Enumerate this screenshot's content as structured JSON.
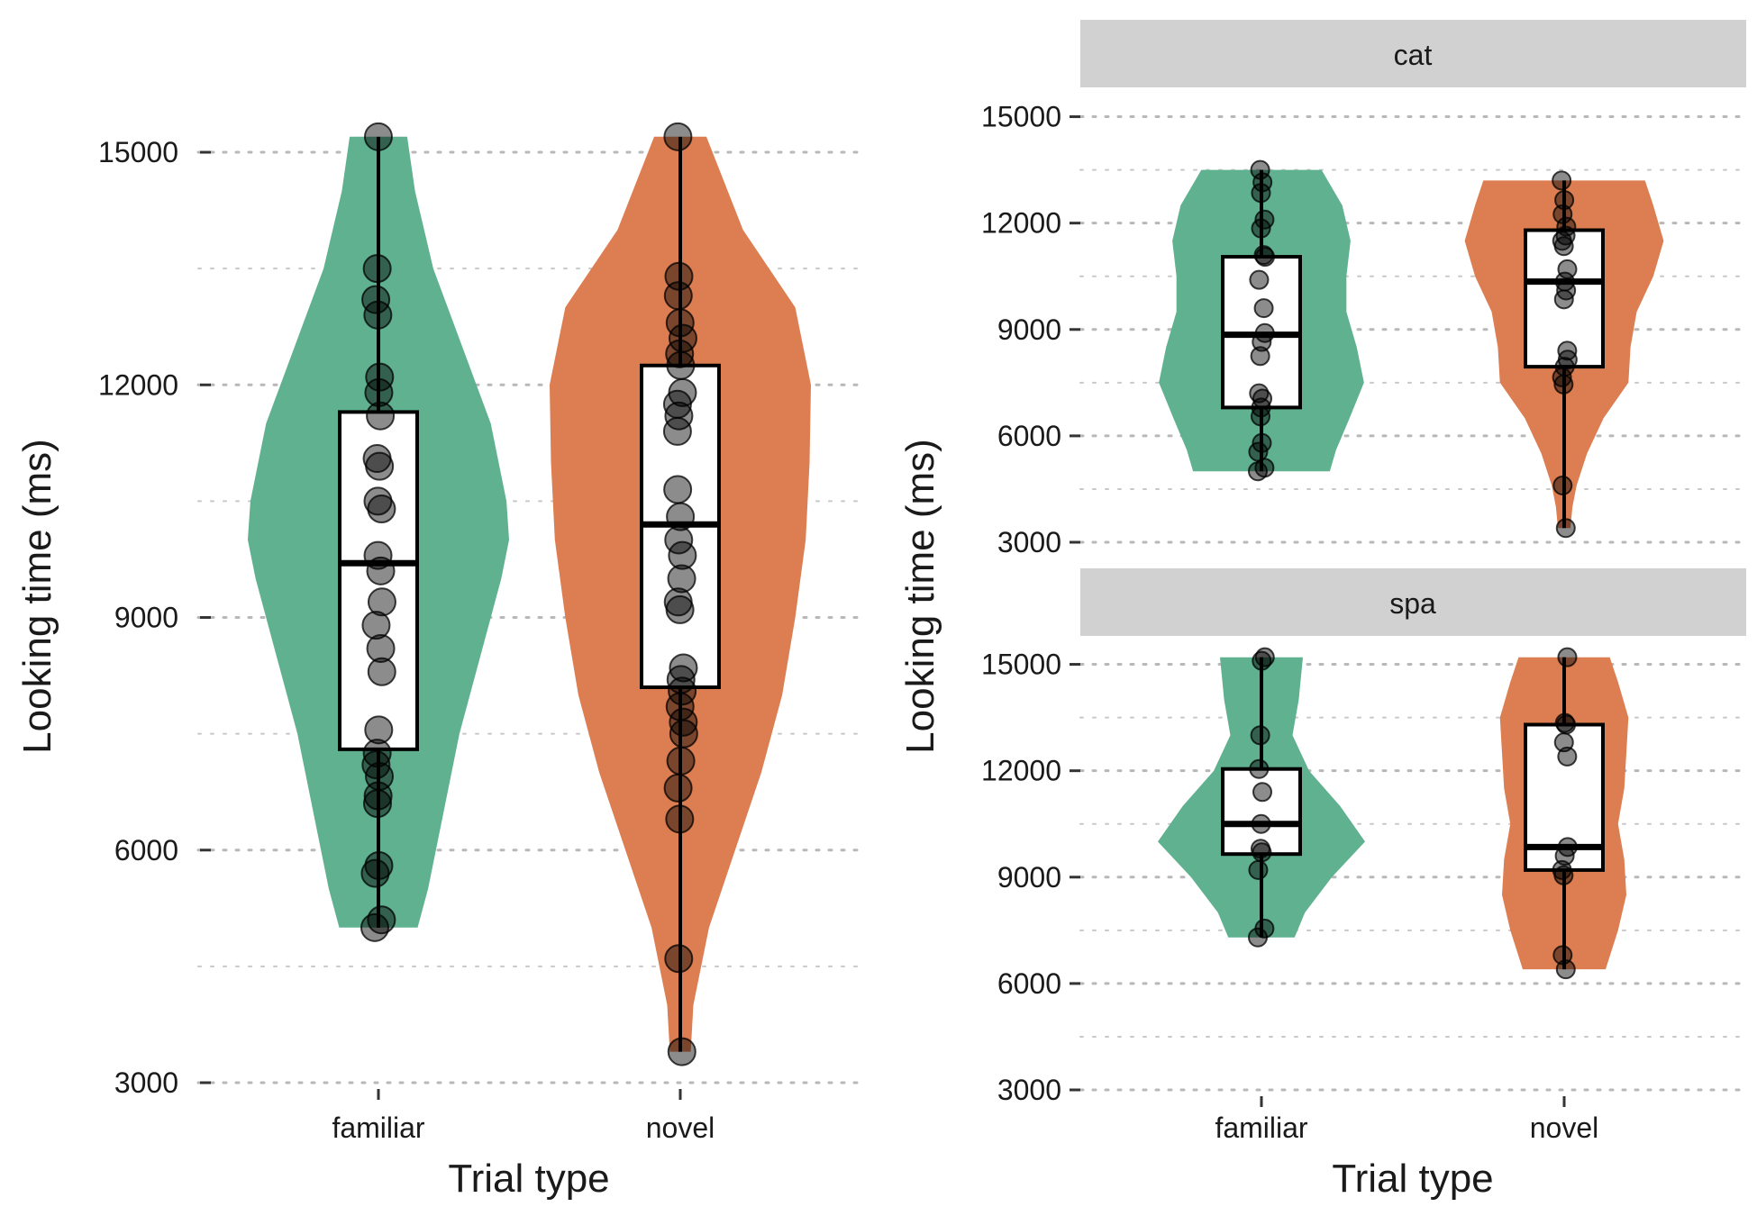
{
  "colors": {
    "familiar": "#5fb190",
    "novel": "#dc7e51",
    "strip": "#d1d1d1"
  },
  "chart_data": [
    {
      "type": "violin",
      "panel": "overall",
      "xlabel": "Trial type",
      "ylabel": "Looking time (ms)",
      "ylim": [
        3000,
        15500
      ],
      "yticks": [
        3000,
        6000,
        9000,
        12000,
        15000
      ],
      "grid": "dotted horizontal",
      "categories": [
        "familiar",
        "novel"
      ],
      "groups": [
        {
          "category": "familiar",
          "box": {
            "q1": 7300,
            "median": 9700,
            "q3": 11650,
            "whisker_low": 5000,
            "whisker_high": 15200
          },
          "density": [
            [
              5000,
              0.3
            ],
            [
              5500,
              0.38
            ],
            [
              6500,
              0.5
            ],
            [
              7500,
              0.62
            ],
            [
              8500,
              0.78
            ],
            [
              9500,
              0.94
            ],
            [
              10000,
              1.0
            ],
            [
              10500,
              0.98
            ],
            [
              11500,
              0.86
            ],
            [
              12500,
              0.64
            ],
            [
              13500,
              0.42
            ],
            [
              14500,
              0.28
            ],
            [
              15200,
              0.22
            ]
          ],
          "points": [
            5000,
            5100,
            5700,
            5800,
            6600,
            6700,
            6950,
            7100,
            7250,
            7550,
            8300,
            8600,
            8900,
            9200,
            9600,
            9800,
            10400,
            10500,
            10950,
            11050,
            11600,
            11900,
            12100,
            12900,
            13100,
            13500,
            15200
          ]
        },
        {
          "category": "novel",
          "box": {
            "q1": 8100,
            "median": 10200,
            "q3": 12250,
            "whisker_low": 3400,
            "whisker_high": 15200
          },
          "density": [
            [
              3400,
              0.08
            ],
            [
              4000,
              0.1
            ],
            [
              5000,
              0.22
            ],
            [
              6000,
              0.42
            ],
            [
              7000,
              0.62
            ],
            [
              8000,
              0.78
            ],
            [
              9000,
              0.88
            ],
            [
              10000,
              0.96
            ],
            [
              11000,
              0.99
            ],
            [
              12000,
              1.0
            ],
            [
              13000,
              0.88
            ],
            [
              14000,
              0.48
            ],
            [
              15200,
              0.2
            ]
          ],
          "points": [
            3400,
            4600,
            6400,
            6800,
            7150,
            7500,
            7650,
            7850,
            8050,
            8200,
            8350,
            9100,
            9200,
            9500,
            9800,
            10000,
            10300,
            10650,
            11400,
            11600,
            11750,
            11900,
            12250,
            12400,
            12600,
            12800,
            13150,
            13400,
            15200
          ]
        }
      ]
    },
    {
      "type": "violin",
      "panel": "cat",
      "strip_label": "cat",
      "xlabel": "Trial type",
      "ylabel": "Looking time (ms)",
      "ylim": [
        3000,
        15500
      ],
      "yticks": [
        3000,
        6000,
        9000,
        12000,
        15000
      ],
      "categories": [
        "familiar",
        "novel"
      ],
      "groups": [
        {
          "category": "familiar",
          "box": {
            "q1": 6800,
            "median": 8850,
            "q3": 11050,
            "whisker_low": 5000,
            "whisker_high": 13500
          },
          "density": [
            [
              5000,
              0.66
            ],
            [
              5600,
              0.72
            ],
            [
              6500,
              0.85
            ],
            [
              7500,
              0.99
            ],
            [
              8500,
              0.92
            ],
            [
              9500,
              0.82
            ],
            [
              10500,
              0.82
            ],
            [
              11500,
              0.86
            ],
            [
              12500,
              0.78
            ],
            [
              13500,
              0.58
            ]
          ],
          "points": [
            5000,
            5100,
            5550,
            5800,
            6550,
            6800,
            7050,
            7200,
            8250,
            8650,
            8900,
            9600,
            10400,
            11050,
            11100,
            11850,
            12100,
            12850,
            13150,
            13500
          ]
        },
        {
          "category": "novel",
          "box": {
            "q1": 7950,
            "median": 10350,
            "q3": 11800,
            "whisker_low": 3400,
            "whisker_high": 13200
          },
          "density": [
            [
              3400,
              0.06
            ],
            [
              4000,
              0.08
            ],
            [
              4600,
              0.12
            ],
            [
              5500,
              0.22
            ],
            [
              6500,
              0.38
            ],
            [
              7500,
              0.62
            ],
            [
              8500,
              0.64
            ],
            [
              9500,
              0.7
            ],
            [
              10500,
              0.86
            ],
            [
              11500,
              0.96
            ],
            [
              12500,
              0.86
            ],
            [
              13200,
              0.78
            ]
          ],
          "points": [
            3400,
            4600,
            7450,
            7650,
            7950,
            8150,
            8400,
            9850,
            10100,
            10350,
            10700,
            11350,
            11500,
            11650,
            11900,
            12250,
            12650,
            13200
          ]
        }
      ]
    },
    {
      "type": "violin",
      "panel": "spa",
      "strip_label": "spa",
      "xlabel": "Trial type",
      "ylabel": "Looking time (ms)",
      "ylim": [
        3000,
        15500
      ],
      "yticks": [
        3000,
        6000,
        9000,
        12000,
        15000
      ],
      "categories": [
        "familiar",
        "novel"
      ],
      "groups": [
        {
          "category": "familiar",
          "box": {
            "q1": 9650,
            "median": 10500,
            "q3": 12050,
            "whisker_low": 7300,
            "whisker_high": 15200
          },
          "density": [
            [
              7300,
              0.32
            ],
            [
              8000,
              0.42
            ],
            [
              9000,
              0.68
            ],
            [
              10000,
              1.0
            ],
            [
              11000,
              0.76
            ],
            [
              12000,
              0.46
            ],
            [
              13000,
              0.3
            ],
            [
              14000,
              0.36
            ],
            [
              15200,
              0.4
            ]
          ],
          "points": [
            7300,
            7550,
            9200,
            9700,
            9800,
            10500,
            11400,
            12050,
            13000,
            15100,
            15200
          ]
        },
        {
          "category": "novel",
          "box": {
            "q1": 9200,
            "median": 9850,
            "q3": 13300,
            "whisker_low": 6400,
            "whisker_high": 15200
          },
          "density": [
            [
              6400,
              0.4
            ],
            [
              7500,
              0.52
            ],
            [
              8500,
              0.6
            ],
            [
              9500,
              0.58
            ],
            [
              10500,
              0.52
            ],
            [
              11500,
              0.58
            ],
            [
              12500,
              0.6
            ],
            [
              13500,
              0.62
            ],
            [
              14500,
              0.52
            ],
            [
              15200,
              0.44
            ]
          ],
          "points": [
            6400,
            6800,
            9050,
            9200,
            9600,
            9850,
            12400,
            12800,
            13300,
            13350,
            15200
          ]
        }
      ]
    }
  ]
}
